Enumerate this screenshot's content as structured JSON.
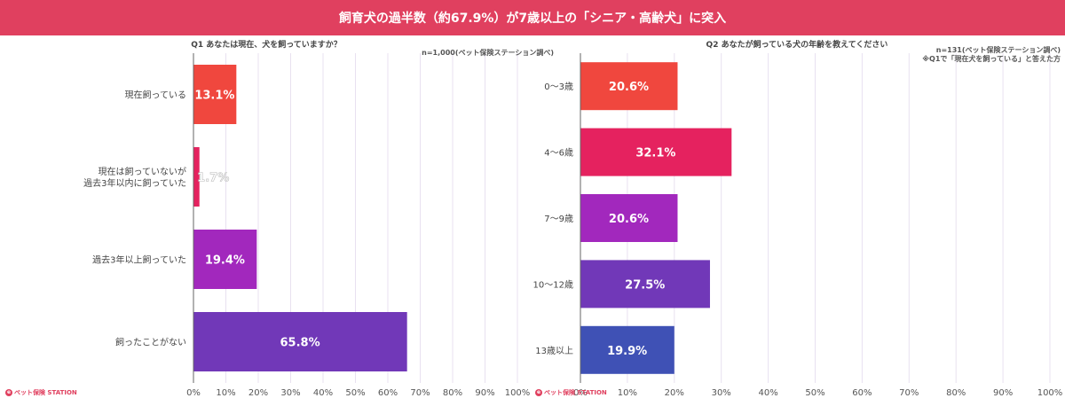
{
  "banner": {
    "title": "飼育犬の過半数（約67.9%）が7歳以上の「シニア・高齢犬」に突入"
  },
  "logo": {
    "text": "ペット保険 STATION"
  },
  "colors": {
    "c1": "#f0473e",
    "c2": "#e5225f",
    "c3": "#a228bd",
    "c4": "#7138b8",
    "c5": "#3f51b5",
    "grid": "#e8e1f0",
    "axis": "#666666"
  },
  "chart_data": [
    {
      "type": "bar",
      "orientation": "horizontal",
      "title": "Q1 あなたは現在、犬を飼っていますか？",
      "note": "n=1,000(ペット保険ステーション調べ)",
      "categories": [
        "現在飼っている",
        "現在は飼っていないが\n過去3年以内に飼っていた",
        "過去3年以上飼っていた",
        "飼ったことがない"
      ],
      "values": [
        13.1,
        1.7,
        19.4,
        65.8
      ],
      "value_labels": [
        "13.1%",
        "1.7%",
        "19.4%",
        "65.8%"
      ],
      "xticks": [
        "0%",
        "10%",
        "20%",
        "30%",
        "40%",
        "50%",
        "60%",
        "70%",
        "80%",
        "90%",
        "100%"
      ],
      "xlim": [
        0,
        100
      ]
    },
    {
      "type": "bar",
      "orientation": "horizontal",
      "title": "Q2 あなたが飼っている犬の年齢を教えてください",
      "note": "n=131(ペット保険ステーション調べ)\n※Q1で「現在犬を飼っている」と答えた方",
      "categories": [
        "0〜3歳",
        "4〜6歳",
        "7〜9歳",
        "10〜12歳",
        "13歳以上"
      ],
      "values": [
        20.6,
        32.1,
        20.6,
        27.5,
        19.9
      ],
      "value_labels": [
        "20.6%",
        "32.1%",
        "20.6%",
        "27.5%",
        "19.9%"
      ],
      "xticks": [
        "0%",
        "10%",
        "20%",
        "30%",
        "40%",
        "50%",
        "60%",
        "70%",
        "80%",
        "90%",
        "100%"
      ],
      "xlim": [
        0,
        100
      ]
    }
  ]
}
